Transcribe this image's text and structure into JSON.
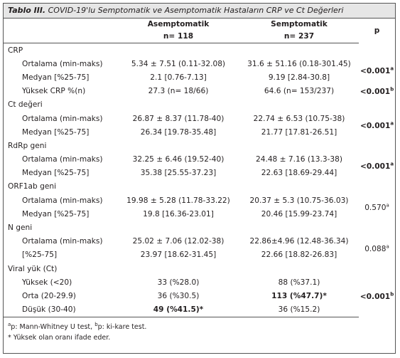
{
  "title": {
    "label": "Tablo III.",
    "text": "COVID-19'lu Semptomatik ve Asemptomatik Hastaların CRP ve Ct Değerleri"
  },
  "header": {
    "col1": {
      "name": "Asemptomatik",
      "n": "n= 118"
    },
    "col2": {
      "name": "Semptomatik",
      "n": "n= 237"
    },
    "p": "p"
  },
  "sections": [
    {
      "label": "CRP",
      "rows": [
        {
          "label": "Ortalama (min-maks)",
          "a": "5.34 ± 7.51 (0.11-32.08)",
          "s": "31.6 ± 51.16 (0.18-301.45)",
          "p": {
            "value": "<0.001",
            "sup": "a",
            "bold": true
          }
        },
        {
          "label": "Medyan [%25-75]",
          "a": "2.1 [0.76-7.13]",
          "s": "9.19 [2.84-30.8]"
        },
        {
          "label": "Yüksek CRP %(n)",
          "a": "27.3 (n= 18/66)",
          "s": "64.6 (n= 153/237)",
          "p": {
            "value": "<0.001",
            "sup": "b",
            "bold": true
          }
        }
      ]
    },
    {
      "label": "Ct değeri",
      "rows": [
        {
          "label": "Ortalama (min-maks)",
          "a": "26.87 ± 8.37 (11.78-40)",
          "s": "22.74 ± 6.53 (10.75-38)",
          "p": {
            "value": "<0.001",
            "sup": "a",
            "bold": true
          }
        },
        {
          "label": "Medyan [%25-75]",
          "a": "26.34 [19.78-35.48]",
          "s": "21.77 [17.81-26.51]"
        }
      ]
    },
    {
      "label": "RdRp geni",
      "rows": [
        {
          "label": "Ortalama (min-maks)",
          "a": "32.25 ± 6.46 (19.52-40)",
          "s": "24.48 ± 7.16 (13.3-38)",
          "p": {
            "value": "<0.001",
            "sup": "a",
            "bold": true
          }
        },
        {
          "label": "Medyan [%25-75]",
          "a": "35.38 [25.55-37.23]",
          "s": "22.63 [18.69-29.44]"
        }
      ]
    },
    {
      "label": "ORF1ab geni",
      "rows": [
        {
          "label": "Ortalama (min-maks)",
          "a": "19.98 ± 5.28 (11.78-33.22)",
          "s": "20.37 ± 5.3 (10.75-36.03)",
          "p": {
            "value": "0.570",
            "sup": "a",
            "bold": false
          }
        },
        {
          "label": "Medyan [%25-75]",
          "a": "19.8 [16.36-23.01]",
          "s": "20.46 [15.99-23.74]"
        }
      ]
    },
    {
      "label": "N geni",
      "rows": [
        {
          "label": "Ortalama (min-maks)",
          "a": "25.02 ± 7.06 (12.02-38)",
          "s": "22.86±4.96 (12.48-36.34)",
          "p": {
            "value": "0.088",
            "sup": "a",
            "bold": false
          }
        },
        {
          "label": "[%25-75]",
          "a": "23.97 [18.62-31.45]",
          "s": "22.66 [18.82-26.83]"
        }
      ]
    },
    {
      "label": "Viral yük (Ct)",
      "rows": [
        {
          "label": "Yüksek (<20)",
          "a": "33 (%28.0)",
          "s": "88 (%37.1)",
          "p": {
            "value": "<0.001",
            "sup": "b",
            "bold": true
          }
        },
        {
          "label": "Orta (20-29.9)",
          "a": "36 (%30.5)",
          "s": {
            "text": "113 (%47.7)*",
            "bold": true
          }
        },
        {
          "label": "Düşük (30-40)",
          "a": {
            "text": "49 (%41.5)*",
            "bold": true
          },
          "s": "36 (%15.2)"
        }
      ]
    }
  ],
  "footnotes": [
    [
      {
        "sup": "a"
      },
      {
        "text": "p: Mann-Whitney U test, "
      },
      {
        "sup": "b"
      },
      {
        "text": "p: ki-kare test."
      }
    ],
    [
      {
        "text": "* Yüksek olan oranı ifade eder."
      }
    ]
  ]
}
